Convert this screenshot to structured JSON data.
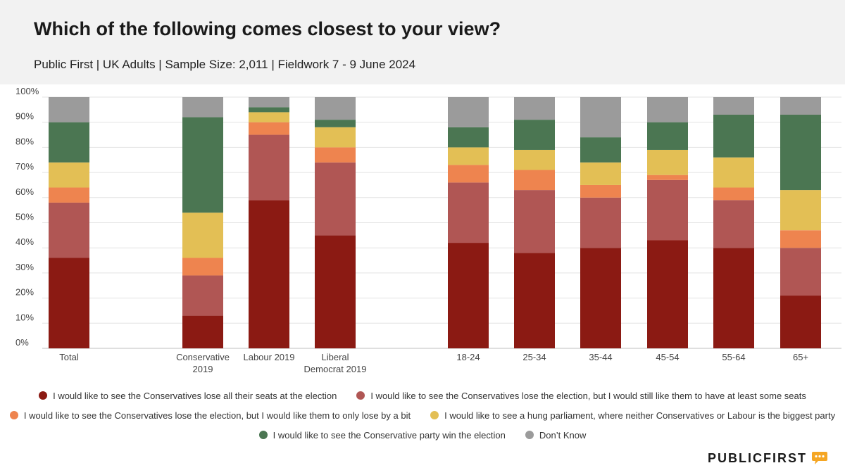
{
  "header": {
    "title": "Which of the following comes closest to your view?",
    "subtitle": "Public First | UK Adults | Sample Size: 2,011 | Fieldwork 7 - 9 June 2024"
  },
  "brand": {
    "logo_text": "PUBLICFIRST",
    "logo_icon": "speech-bubble-icon",
    "logo_icon_color": "#f5a623"
  },
  "chart_data": {
    "type": "bar",
    "stacked": true,
    "ylim": [
      0,
      100
    ],
    "yticks": [
      "0%",
      "10%",
      "20%",
      "30%",
      "40%",
      "50%",
      "60%",
      "70%",
      "80%",
      "90%",
      "100%"
    ],
    "grid": true,
    "legend_position": "bottom",
    "categories": [
      [
        "Total"
      ],
      [
        "Conservative",
        "2019"
      ],
      [
        "Labour 2019"
      ],
      [
        "Liberal",
        "Democrat 2019"
      ],
      [
        "18-24"
      ],
      [
        "25-34"
      ],
      [
        "35-44"
      ],
      [
        "45-54"
      ],
      [
        "55-64"
      ],
      [
        "65+"
      ]
    ],
    "series": [
      {
        "name": "I would like to see the Conservatives lose all their seats at the election",
        "color": "#8b1a13",
        "values": [
          36,
          13,
          59,
          45,
          42,
          38,
          40,
          43,
          40,
          21
        ]
      },
      {
        "name": "I would like to see the Conservatives lose the election, but I would still like them to have at least some seats",
        "color": "#b05654",
        "values": [
          22,
          16,
          26,
          29,
          24,
          25,
          20,
          24,
          19,
          19
        ]
      },
      {
        "name": "I would like to see the Conservatives lose the election, but I would like them to only lose by a bit",
        "color": "#ee844f",
        "values": [
          6,
          7,
          5,
          6,
          7,
          8,
          5,
          2,
          5,
          7
        ]
      },
      {
        "name": "I would like to see a hung parliament, where neither Conservatives or Labour is the biggest party",
        "color": "#e3bf55",
        "values": [
          10,
          18,
          4,
          8,
          7,
          8,
          9,
          10,
          12,
          16
        ]
      },
      {
        "name": "I would like to see the Conservative party win the election",
        "color": "#4b7652",
        "values": [
          16,
          38,
          2,
          3,
          8,
          12,
          10,
          11,
          17,
          30
        ]
      },
      {
        "name": "Don’t Know",
        "color": "#9b9b9b",
        "values": [
          10,
          8,
          4,
          9,
          12,
          9,
          16,
          10,
          7,
          7
        ]
      }
    ]
  }
}
